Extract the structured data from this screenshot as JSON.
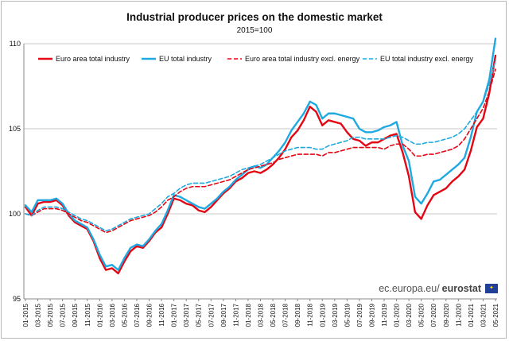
{
  "chart_data": {
    "type": "line",
    "title": "Industrial producer prices on the domestic market",
    "subtitle": "2015=100",
    "xlabel": "",
    "ylabel": "",
    "ylim": [
      95,
      110
    ],
    "yticks": [
      95,
      100,
      105,
      110
    ],
    "x": [
      "01-2015",
      "02-2015",
      "03-2015",
      "04-2015",
      "05-2015",
      "06-2015",
      "07-2015",
      "08-2015",
      "09-2015",
      "10-2015",
      "11-2015",
      "12-2015",
      "01-2016",
      "02-2016",
      "03-2016",
      "04-2016",
      "05-2016",
      "06-2016",
      "07-2016",
      "08-2016",
      "09-2016",
      "10-2016",
      "11-2016",
      "12-2016",
      "01-2017",
      "02-2017",
      "03-2017",
      "04-2017",
      "05-2017",
      "06-2017",
      "07-2017",
      "08-2017",
      "09-2017",
      "10-2017",
      "11-2017",
      "12-2017",
      "01-2018",
      "02-2018",
      "03-2018",
      "04-2018",
      "05-2018",
      "06-2018",
      "07-2018",
      "08-2018",
      "09-2018",
      "10-2018",
      "11-2018",
      "12-2018",
      "01-2019",
      "02-2019",
      "03-2019",
      "04-2019",
      "05-2019",
      "06-2019",
      "07-2019",
      "08-2019",
      "09-2019",
      "10-2019",
      "11-2019",
      "12-2019",
      "01-2020",
      "02-2020",
      "03-2020",
      "04-2020",
      "05-2020",
      "06-2020",
      "07-2020",
      "08-2020",
      "09-2020",
      "10-2020",
      "11-2020",
      "12-2020",
      "01-2021",
      "02-2021",
      "03-2021",
      "04-2021",
      "05-2021"
    ],
    "xtick_labels": [
      "01-2015",
      "03-2015",
      "05-2015",
      "07-2015",
      "09-2015",
      "11-2015",
      "01-2016",
      "03-2016",
      "05-2016",
      "07-2016",
      "09-2016",
      "11-2016",
      "01-2017",
      "03-2017",
      "05-2017",
      "07-2017",
      "09-2017",
      "11-2017",
      "01-2018",
      "03-2018",
      "05-2018",
      "07-2018",
      "09-2018",
      "11-2018",
      "01-2019",
      "03-2019",
      "05-2019",
      "07-2019",
      "09-2019",
      "11-2019",
      "01-2020",
      "03-2020",
      "05-2020",
      "07-2020",
      "09-2020",
      "11-2020",
      "01-2021",
      "03-2021",
      "05-2021"
    ],
    "legend_position": "top",
    "grid": "horizontal",
    "series": [
      {
        "name": "Euro area total industry",
        "color": "#e30613",
        "style": "solid",
        "values": [
          100.4,
          99.9,
          100.6,
          100.7,
          100.7,
          100.8,
          100.5,
          99.9,
          99.5,
          99.3,
          99.1,
          98.4,
          97.4,
          96.7,
          96.8,
          96.5,
          97.2,
          97.8,
          98.1,
          98.0,
          98.4,
          98.9,
          99.2,
          100.0,
          100.9,
          100.8,
          100.6,
          100.5,
          100.2,
          100.1,
          100.4,
          100.8,
          101.2,
          101.5,
          101.9,
          102.1,
          102.4,
          102.5,
          102.4,
          102.6,
          102.9,
          103.3,
          103.8,
          104.5,
          104.9,
          105.5,
          106.3,
          106.0,
          105.2,
          105.5,
          105.4,
          105.3,
          104.8,
          104.4,
          104.3,
          104.0,
          104.2,
          104.2,
          104.4,
          104.6,
          104.7,
          103.6,
          102.2,
          100.1,
          99.7,
          100.5,
          101.1,
          101.3,
          101.5,
          101.9,
          102.2,
          102.6,
          103.7,
          105.1,
          105.6,
          107.1,
          109.3
        ]
      },
      {
        "name": "EU total industry",
        "color": "#1fa9e1",
        "style": "solid",
        "values": [
          100.5,
          100.1,
          100.8,
          100.8,
          100.8,
          100.9,
          100.6,
          100.0,
          99.6,
          99.4,
          99.2,
          98.5,
          97.6,
          96.9,
          97.0,
          96.7,
          97.4,
          98.0,
          98.2,
          98.1,
          98.5,
          99.0,
          99.4,
          100.2,
          101.1,
          101.0,
          100.8,
          100.6,
          100.4,
          100.3,
          100.6,
          100.9,
          101.3,
          101.6,
          102.0,
          102.3,
          102.6,
          102.8,
          102.7,
          102.9,
          103.3,
          103.7,
          104.2,
          104.9,
          105.4,
          105.9,
          106.6,
          106.4,
          105.6,
          105.9,
          105.9,
          105.8,
          105.7,
          105.6,
          105.0,
          104.8,
          104.8,
          104.9,
          105.1,
          105.2,
          105.4,
          104.0,
          103.1,
          101.0,
          100.6,
          101.2,
          101.9,
          102.0,
          102.3,
          102.6,
          102.9,
          103.3,
          104.5,
          106.0,
          106.6,
          107.9,
          110.3
        ]
      },
      {
        "name": "Euro area total industry excl. energy",
        "color": "#e30613",
        "style": "dashed",
        "values": [
          100.0,
          99.9,
          100.1,
          100.3,
          100.3,
          100.3,
          100.2,
          100.0,
          99.8,
          99.6,
          99.5,
          99.3,
          99.1,
          98.9,
          99.0,
          99.2,
          99.4,
          99.6,
          99.7,
          99.8,
          99.9,
          100.1,
          100.4,
          100.8,
          101.0,
          101.3,
          101.5,
          101.6,
          101.6,
          101.6,
          101.7,
          101.8,
          101.9,
          102.0,
          102.2,
          102.4,
          102.6,
          102.7,
          102.8,
          102.9,
          103.0,
          103.2,
          103.3,
          103.4,
          103.5,
          103.5,
          103.5,
          103.5,
          103.4,
          103.6,
          103.6,
          103.7,
          103.8,
          103.9,
          103.9,
          103.9,
          103.9,
          103.9,
          103.8,
          104.0,
          104.1,
          104.1,
          103.8,
          103.4,
          103.4,
          103.5,
          103.5,
          103.6,
          103.7,
          103.8,
          104.0,
          104.4,
          105.0,
          105.6,
          106.2,
          107.2,
          108.5
        ]
      },
      {
        "name": "EU total industry excl. energy",
        "color": "#1fa9e1",
        "style": "dashed",
        "values": [
          100.0,
          99.9,
          100.2,
          100.4,
          100.4,
          100.4,
          100.3,
          100.1,
          99.9,
          99.7,
          99.6,
          99.4,
          99.2,
          99.0,
          99.1,
          99.3,
          99.5,
          99.7,
          99.8,
          99.9,
          100.0,
          100.3,
          100.6,
          101.0,
          101.2,
          101.5,
          101.7,
          101.8,
          101.8,
          101.8,
          101.9,
          102.0,
          102.1,
          102.2,
          102.4,
          102.6,
          102.7,
          102.8,
          102.9,
          103.1,
          103.3,
          103.5,
          103.7,
          103.8,
          103.9,
          103.9,
          103.9,
          103.8,
          103.8,
          104.0,
          104.1,
          104.2,
          104.3,
          104.5,
          104.5,
          104.4,
          104.4,
          104.4,
          104.4,
          104.5,
          104.6,
          104.5,
          104.3,
          104.1,
          104.1,
          104.2,
          104.2,
          104.3,
          104.4,
          104.5,
          104.7,
          105.0,
          105.5,
          106.0,
          106.6,
          107.6,
          109.0
        ]
      }
    ]
  },
  "source": {
    "prefix": "ec.europa.eu/",
    "brand": "eurostat"
  }
}
